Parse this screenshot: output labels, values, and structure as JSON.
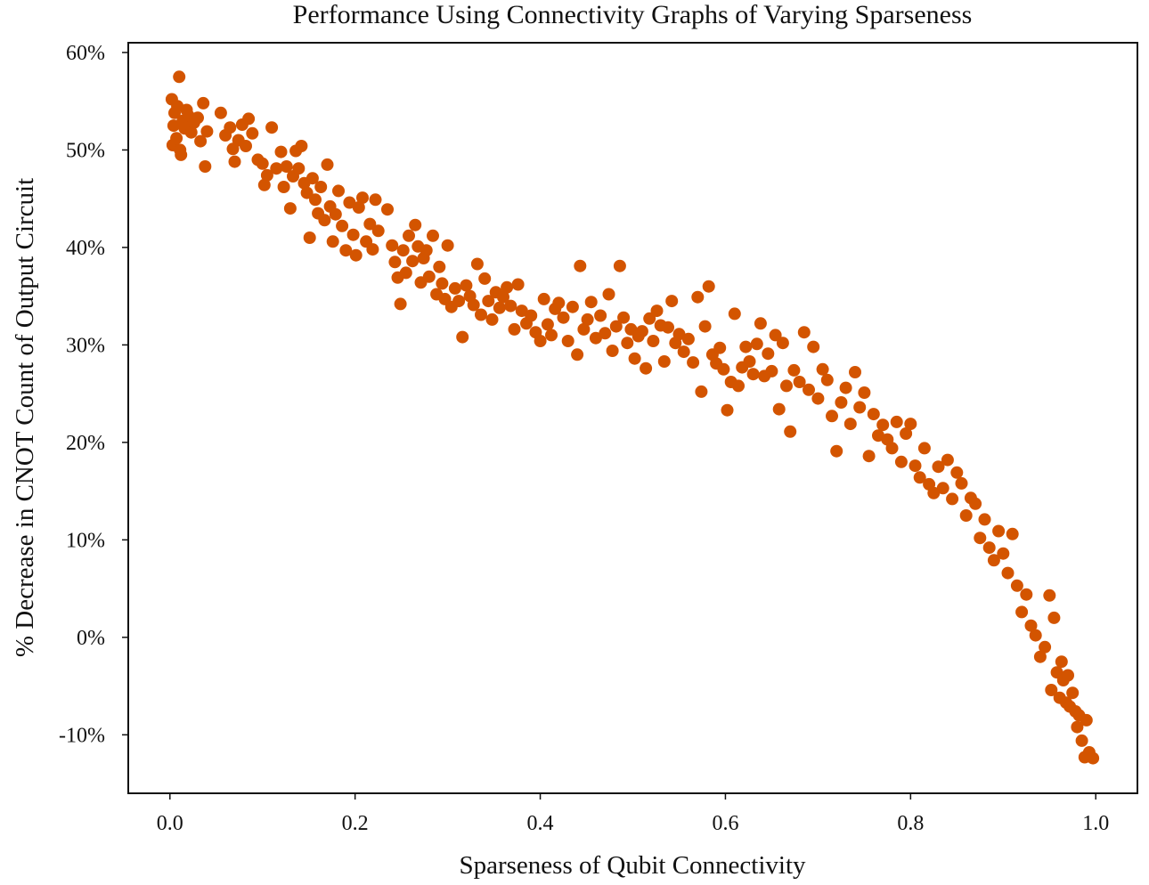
{
  "colors": {
    "point": "#d35400",
    "axis": "#111111",
    "background": "#ffffff"
  },
  "chart_data": {
    "type": "scatter",
    "title": "Performance Using Connectivity Graphs of Varying Sparseness",
    "xlabel": "Sparseness of Qubit Connectivity",
    "ylabel": "% Decrease in CNOT Count of Output Circuit",
    "xlim": [
      -0.045,
      1.045
    ],
    "ylim": [
      -16.0,
      61.0
    ],
    "x_ticks": [
      0.0,
      0.2,
      0.4,
      0.6,
      0.8,
      1.0
    ],
    "x_tick_labels": [
      "0.0",
      "0.2",
      "0.4",
      "0.6",
      "0.8",
      "1.0"
    ],
    "y_ticks": [
      60,
      50,
      40,
      30,
      20,
      10,
      0,
      -10
    ],
    "y_tick_labels": [
      "60%",
      "50%",
      "40%",
      "30%",
      "20%",
      "10%",
      "0%",
      "-10%"
    ],
    "grid": false,
    "legend": "none",
    "series": [
      {
        "points": [
          [
            0.002,
            55.2
          ],
          [
            0.003,
            50.5
          ],
          [
            0.004,
            52.5
          ],
          [
            0.005,
            53.8
          ],
          [
            0.007,
            51.2
          ],
          [
            0.008,
            54.5
          ],
          [
            0.01,
            57.5
          ],
          [
            0.011,
            50.0
          ],
          [
            0.012,
            49.5
          ],
          [
            0.014,
            53.0
          ],
          [
            0.016,
            52.2
          ],
          [
            0.018,
            54.1
          ],
          [
            0.02,
            53.5
          ],
          [
            0.023,
            51.8
          ],
          [
            0.026,
            52.8
          ],
          [
            0.03,
            53.3
          ],
          [
            0.033,
            50.9
          ],
          [
            0.036,
            54.8
          ],
          [
            0.038,
            48.3
          ],
          [
            0.04,
            51.9
          ],
          [
            0.055,
            53.8
          ],
          [
            0.06,
            51.5
          ],
          [
            0.065,
            52.3
          ],
          [
            0.068,
            50.1
          ],
          [
            0.07,
            48.8
          ],
          [
            0.074,
            51.0
          ],
          [
            0.078,
            52.6
          ],
          [
            0.082,
            50.4
          ],
          [
            0.085,
            53.2
          ],
          [
            0.089,
            51.7
          ],
          [
            0.095,
            49.0
          ],
          [
            0.1,
            48.6
          ],
          [
            0.102,
            46.4
          ],
          [
            0.105,
            47.4
          ],
          [
            0.11,
            52.3
          ],
          [
            0.115,
            48.1
          ],
          [
            0.12,
            49.8
          ],
          [
            0.123,
            46.2
          ],
          [
            0.126,
            48.3
          ],
          [
            0.13,
            44.0
          ],
          [
            0.133,
            47.3
          ],
          [
            0.136,
            49.9
          ],
          [
            0.139,
            48.1
          ],
          [
            0.142,
            50.4
          ],
          [
            0.145,
            46.6
          ],
          [
            0.148,
            45.6
          ],
          [
            0.151,
            41.0
          ],
          [
            0.154,
            47.1
          ],
          [
            0.157,
            44.9
          ],
          [
            0.16,
            43.5
          ],
          [
            0.163,
            46.2
          ],
          [
            0.167,
            42.8
          ],
          [
            0.17,
            48.5
          ],
          [
            0.173,
            44.2
          ],
          [
            0.176,
            40.6
          ],
          [
            0.179,
            43.4
          ],
          [
            0.182,
            45.8
          ],
          [
            0.186,
            42.2
          ],
          [
            0.19,
            39.7
          ],
          [
            0.194,
            44.6
          ],
          [
            0.198,
            41.3
          ],
          [
            0.201,
            39.2
          ],
          [
            0.204,
            44.1
          ],
          [
            0.208,
            45.1
          ],
          [
            0.212,
            40.6
          ],
          [
            0.216,
            42.4
          ],
          [
            0.219,
            39.8
          ],
          [
            0.222,
            44.9
          ],
          [
            0.225,
            41.7
          ],
          [
            0.235,
            43.9
          ],
          [
            0.24,
            40.2
          ],
          [
            0.243,
            38.5
          ],
          [
            0.246,
            36.9
          ],
          [
            0.249,
            34.2
          ],
          [
            0.252,
            39.7
          ],
          [
            0.255,
            37.4
          ],
          [
            0.258,
            41.2
          ],
          [
            0.262,
            38.6
          ],
          [
            0.265,
            42.3
          ],
          [
            0.268,
            40.1
          ],
          [
            0.271,
            36.4
          ],
          [
            0.274,
            38.9
          ],
          [
            0.277,
            39.7
          ],
          [
            0.28,
            37.0
          ],
          [
            0.284,
            41.2
          ],
          [
            0.288,
            35.2
          ],
          [
            0.291,
            38.0
          ],
          [
            0.294,
            36.3
          ],
          [
            0.297,
            34.7
          ],
          [
            0.3,
            40.2
          ],
          [
            0.304,
            33.9
          ],
          [
            0.308,
            35.8
          ],
          [
            0.312,
            34.5
          ],
          [
            0.316,
            30.8
          ],
          [
            0.32,
            36.1
          ],
          [
            0.324,
            35.0
          ],
          [
            0.328,
            34.1
          ],
          [
            0.332,
            38.3
          ],
          [
            0.336,
            33.1
          ],
          [
            0.34,
            36.8
          ],
          [
            0.344,
            34.5
          ],
          [
            0.348,
            32.6
          ],
          [
            0.352,
            35.4
          ],
          [
            0.356,
            33.8
          ],
          [
            0.36,
            34.9
          ],
          [
            0.364,
            35.9
          ],
          [
            0.368,
            34.0
          ],
          [
            0.372,
            31.6
          ],
          [
            0.376,
            36.2
          ],
          [
            0.38,
            33.5
          ],
          [
            0.385,
            32.2
          ],
          [
            0.39,
            33.0
          ],
          [
            0.395,
            31.3
          ],
          [
            0.4,
            30.4
          ],
          [
            0.404,
            34.7
          ],
          [
            0.408,
            32.1
          ],
          [
            0.412,
            31.0
          ],
          [
            0.416,
            33.7
          ],
          [
            0.42,
            34.3
          ],
          [
            0.425,
            32.8
          ],
          [
            0.43,
            30.4
          ],
          [
            0.435,
            33.9
          ],
          [
            0.44,
            29.0
          ],
          [
            0.443,
            38.1
          ],
          [
            0.447,
            31.6
          ],
          [
            0.451,
            32.6
          ],
          [
            0.455,
            34.4
          ],
          [
            0.46,
            30.7
          ],
          [
            0.465,
            33.0
          ],
          [
            0.47,
            31.2
          ],
          [
            0.474,
            35.2
          ],
          [
            0.478,
            29.4
          ],
          [
            0.482,
            31.9
          ],
          [
            0.486,
            38.1
          ],
          [
            0.49,
            32.8
          ],
          [
            0.494,
            30.2
          ],
          [
            0.498,
            31.6
          ],
          [
            0.502,
            28.6
          ],
          [
            0.506,
            30.9
          ],
          [
            0.51,
            31.4
          ],
          [
            0.514,
            27.6
          ],
          [
            0.518,
            32.7
          ],
          [
            0.522,
            30.4
          ],
          [
            0.526,
            33.5
          ],
          [
            0.53,
            32.0
          ],
          [
            0.534,
            28.3
          ],
          [
            0.538,
            31.8
          ],
          [
            0.542,
            34.5
          ],
          [
            0.546,
            30.2
          ],
          [
            0.55,
            31.1
          ],
          [
            0.555,
            29.3
          ],
          [
            0.56,
            30.6
          ],
          [
            0.565,
            28.2
          ],
          [
            0.57,
            34.9
          ],
          [
            0.574,
            25.2
          ],
          [
            0.578,
            31.9
          ],
          [
            0.582,
            36.0
          ],
          [
            0.586,
            29.0
          ],
          [
            0.59,
            28.1
          ],
          [
            0.594,
            29.7
          ],
          [
            0.598,
            27.5
          ],
          [
            0.602,
            23.3
          ],
          [
            0.606,
            26.2
          ],
          [
            0.61,
            33.2
          ],
          [
            0.614,
            25.8
          ],
          [
            0.618,
            27.7
          ],
          [
            0.622,
            29.8
          ],
          [
            0.626,
            28.3
          ],
          [
            0.63,
            27.0
          ],
          [
            0.634,
            30.1
          ],
          [
            0.638,
            32.2
          ],
          [
            0.642,
            26.8
          ],
          [
            0.646,
            29.1
          ],
          [
            0.65,
            27.3
          ],
          [
            0.654,
            31.0
          ],
          [
            0.658,
            23.4
          ],
          [
            0.662,
            30.2
          ],
          [
            0.666,
            25.8
          ],
          [
            0.67,
            21.1
          ],
          [
            0.674,
            27.4
          ],
          [
            0.68,
            26.2
          ],
          [
            0.685,
            31.3
          ],
          [
            0.69,
            25.4
          ],
          [
            0.695,
            29.8
          ],
          [
            0.7,
            24.5
          ],
          [
            0.705,
            27.5
          ],
          [
            0.71,
            26.4
          ],
          [
            0.715,
            22.7
          ],
          [
            0.72,
            19.1
          ],
          [
            0.725,
            24.1
          ],
          [
            0.73,
            25.6
          ],
          [
            0.735,
            21.9
          ],
          [
            0.74,
            27.2
          ],
          [
            0.745,
            23.6
          ],
          [
            0.75,
            25.1
          ],
          [
            0.755,
            18.6
          ],
          [
            0.76,
            22.9
          ],
          [
            0.765,
            20.7
          ],
          [
            0.77,
            21.8
          ],
          [
            0.775,
            20.3
          ],
          [
            0.78,
            19.4
          ],
          [
            0.785,
            22.1
          ],
          [
            0.79,
            18.0
          ],
          [
            0.795,
            20.9
          ],
          [
            0.8,
            21.9
          ],
          [
            0.805,
            17.6
          ],
          [
            0.81,
            16.4
          ],
          [
            0.815,
            19.4
          ],
          [
            0.82,
            15.7
          ],
          [
            0.825,
            14.8
          ],
          [
            0.83,
            17.5
          ],
          [
            0.835,
            15.3
          ],
          [
            0.84,
            18.2
          ],
          [
            0.845,
            14.2
          ],
          [
            0.85,
            16.9
          ],
          [
            0.855,
            15.8
          ],
          [
            0.86,
            12.5
          ],
          [
            0.865,
            14.3
          ],
          [
            0.87,
            13.7
          ],
          [
            0.875,
            10.2
          ],
          [
            0.88,
            12.1
          ],
          [
            0.885,
            9.2
          ],
          [
            0.89,
            7.9
          ],
          [
            0.895,
            10.9
          ],
          [
            0.9,
            8.6
          ],
          [
            0.905,
            6.6
          ],
          [
            0.91,
            10.6
          ],
          [
            0.915,
            5.3
          ],
          [
            0.92,
            2.6
          ],
          [
            0.925,
            4.4
          ],
          [
            0.93,
            1.2
          ],
          [
            0.935,
            0.2
          ],
          [
            0.94,
            -2.0
          ],
          [
            0.945,
            -1.0
          ],
          [
            0.95,
            4.3
          ],
          [
            0.952,
            -5.4
          ],
          [
            0.955,
            2.0
          ],
          [
            0.958,
            -3.6
          ],
          [
            0.961,
            -6.2
          ],
          [
            0.963,
            -2.5
          ],
          [
            0.965,
            -4.4
          ],
          [
            0.968,
            -6.7
          ],
          [
            0.97,
            -3.9
          ],
          [
            0.972,
            -7.1
          ],
          [
            0.975,
            -5.7
          ],
          [
            0.978,
            -7.6
          ],
          [
            0.98,
            -9.2
          ],
          [
            0.982,
            -8.0
          ],
          [
            0.985,
            -10.6
          ],
          [
            0.988,
            -12.3
          ],
          [
            0.99,
            -8.5
          ],
          [
            0.993,
            -11.8
          ],
          [
            0.997,
            -12.4
          ]
        ]
      }
    ]
  }
}
